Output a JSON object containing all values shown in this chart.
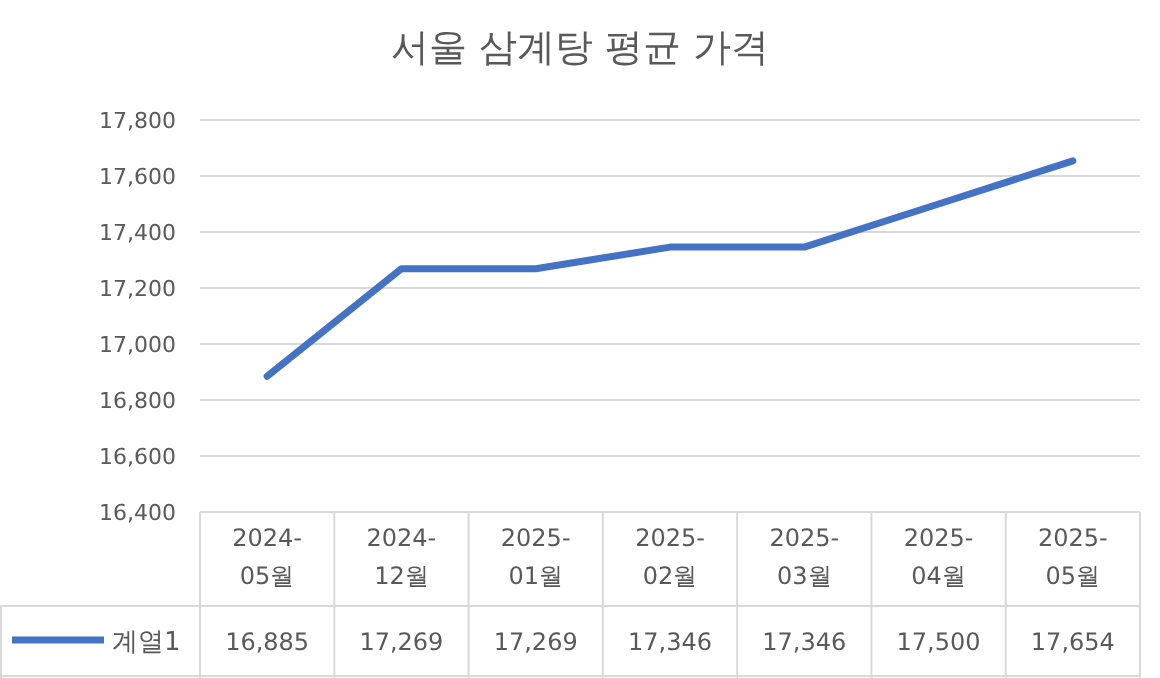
{
  "chart_data": {
    "type": "line",
    "title": "서울 삼계탕 평균 가격",
    "categories": [
      "2024-05월",
      "2024-12월",
      "2025-01월",
      "2025-02월",
      "2025-03월",
      "2025-04월",
      "2025-05월"
    ],
    "series": [
      {
        "name": "계열1",
        "color": "#4472c4",
        "values": [
          16885,
          17269,
          17269,
          17346,
          17346,
          17500,
          17654
        ],
        "value_labels": [
          "16,885",
          "17,269",
          "17,269",
          "17,346",
          "17,346",
          "17,500",
          "17,654"
        ]
      }
    ],
    "ylim": [
      16400,
      17800
    ],
    "yticks": [
      {
        "value": 16400,
        "label": "16,400"
      },
      {
        "value": 16600,
        "label": "16,600"
      },
      {
        "value": 16800,
        "label": "16,800"
      },
      {
        "value": 17000,
        "label": "17,000"
      },
      {
        "value": 17200,
        "label": "17,200"
      },
      {
        "value": 17400,
        "label": "17,400"
      },
      {
        "value": 17600,
        "label": "17,600"
      },
      {
        "value": 17800,
        "label": "17,800"
      }
    ],
    "grid": "y",
    "legend": "bottom",
    "marker": "none",
    "line_style": "solid"
  }
}
